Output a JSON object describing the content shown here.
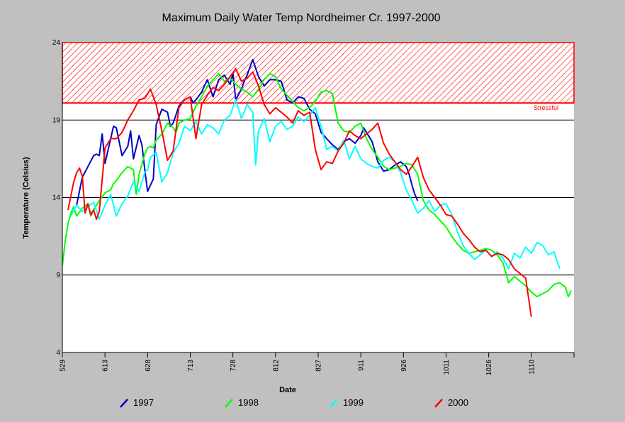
{
  "chart_data": {
    "type": "line",
    "title": "Maximum Daily Water Temp Nordheimer Cr. 1997-2000",
    "xlabel": "Date",
    "ylabel": "Temperature (Celsius)",
    "x_start_label": "529",
    "x_ticks": [
      {
        "label": "529",
        "day": 0
      },
      {
        "label": "613",
        "day": 15
      },
      {
        "label": "628",
        "day": 30
      },
      {
        "label": "713",
        "day": 45
      },
      {
        "label": "728",
        "day": 60
      },
      {
        "label": "812",
        "day": 75
      },
      {
        "label": "827",
        "day": 90
      },
      {
        "label": "911",
        "day": 105
      },
      {
        "label": "926",
        "day": 120
      },
      {
        "label": "1011",
        "day": 135
      },
      {
        "label": "1026",
        "day": 150
      },
      {
        "label": "1110",
        "day": 165
      }
    ],
    "xlim": [
      0,
      180
    ],
    "ylim": [
      4,
      24
    ],
    "y_ticks": [
      4,
      9,
      14,
      19,
      24
    ],
    "grid": "horizontal",
    "threshold": {
      "label": "Stressful",
      "from": 20.1,
      "to": 24,
      "color": "#ff0000"
    },
    "legend_position": "bottom",
    "series": [
      {
        "name": "1997",
        "color": "#0000c8",
        "x": [
          5,
          7,
          9,
          11,
          12,
          13,
          14,
          15,
          17,
          18,
          19,
          21,
          23,
          24,
          25,
          27,
          28,
          29,
          30,
          31,
          32,
          33,
          35,
          37,
          38,
          39,
          41,
          43,
          45,
          46,
          47,
          49,
          51,
          53,
          55,
          57,
          59,
          60,
          61,
          63,
          64,
          65,
          67,
          69,
          71,
          73,
          75,
          77,
          79,
          81,
          83,
          85,
          87,
          89,
          91,
          93,
          95,
          97,
          99,
          101,
          103,
          105,
          106,
          107,
          109,
          111,
          113,
          115,
          117,
          119,
          121,
          122,
          123,
          124,
          125
        ],
        "y": [
          13.5,
          15.3,
          16.0,
          16.7,
          16.8,
          16.7,
          18.1,
          16.2,
          17.8,
          18.6,
          18.5,
          16.7,
          17.3,
          18.3,
          16.5,
          18.0,
          17.4,
          15.8,
          14.4,
          14.8,
          15.2,
          18.7,
          19.7,
          19.5,
          18.6,
          18.8,
          19.9,
          20.3,
          20.5,
          20.1,
          20.3,
          20.8,
          21.6,
          20.5,
          21.6,
          21.9,
          21.3,
          22.0,
          20.3,
          21.0,
          21.5,
          21.9,
          22.9,
          21.8,
          21.2,
          21.6,
          21.6,
          21.5,
          20.3,
          20.1,
          20.5,
          20.4,
          19.7,
          19.4,
          18.2,
          17.8,
          17.4,
          17.1,
          17.6,
          17.8,
          17.5,
          18.0,
          18.5,
          18.2,
          17.6,
          16.3,
          15.7,
          15.8,
          16.1,
          16.3,
          16.0,
          15.5,
          14.8,
          14.2,
          13.8
        ]
      },
      {
        "name": "1998",
        "color": "#00ff00",
        "x": [
          0,
          1,
          2,
          3,
          4,
          5,
          7,
          9,
          10,
          11,
          13,
          15,
          17,
          18,
          19,
          21,
          23,
          25,
          26,
          27,
          29,
          30,
          31,
          32,
          33,
          35,
          37,
          39,
          40,
          41,
          43,
          45,
          47,
          49,
          51,
          53,
          55,
          57,
          59,
          61,
          63,
          65,
          67,
          69,
          71,
          73,
          75,
          77,
          79,
          81,
          83,
          85,
          87,
          89,
          91,
          93,
          95,
          97,
          99,
          101,
          103,
          105,
          107,
          109,
          111,
          113,
          115,
          117,
          119,
          121,
          123,
          125,
          127,
          129,
          131,
          133,
          135,
          137,
          139,
          141,
          143,
          145,
          147,
          149,
          151,
          153,
          155,
          157,
          159,
          161,
          163,
          165,
          167,
          169,
          171,
          173,
          175,
          177,
          178,
          179
        ],
        "y": [
          9.6,
          11.2,
          12.3,
          13.0,
          13.4,
          12.8,
          13.3,
          13.6,
          12.8,
          13.2,
          13.8,
          14.3,
          14.5,
          14.9,
          15.1,
          15.6,
          16.0,
          15.8,
          14.2,
          15.5,
          16.8,
          17.2,
          17.3,
          17.2,
          17.7,
          18.1,
          18.8,
          18.5,
          18.2,
          18.8,
          19.0,
          19.1,
          19.9,
          20.5,
          21.2,
          21.6,
          22.0,
          21.5,
          21.7,
          21.3,
          21.0,
          20.8,
          20.5,
          21.0,
          21.6,
          22.0,
          21.8,
          21.0,
          20.6,
          20.2,
          19.8,
          19.6,
          19.8,
          20.2,
          20.8,
          20.9,
          20.7,
          18.8,
          18.3,
          18.2,
          18.6,
          18.8,
          17.8,
          17.1,
          16.6,
          16.0,
          15.8,
          15.9,
          16.0,
          16.2,
          16.1,
          15.5,
          13.8,
          13.2,
          12.9,
          12.5,
          12.1,
          11.5,
          11.0,
          10.6,
          10.4,
          10.5,
          10.6,
          10.7,
          10.6,
          10.3,
          9.8,
          8.5,
          8.9,
          8.6,
          8.3,
          7.9,
          7.6,
          7.8,
          8.0,
          8.4,
          8.5,
          8.2,
          7.6,
          8.0
        ]
      },
      {
        "name": "1999",
        "color": "#00ffff",
        "x": [
          3,
          5,
          7,
          9,
          11,
          13,
          15,
          17,
          19,
          21,
          23,
          25,
          27,
          29,
          30,
          31,
          33,
          35,
          37,
          39,
          41,
          43,
          45,
          47,
          49,
          51,
          53,
          55,
          57,
          59,
          61,
          63,
          65,
          67,
          68,
          69,
          71,
          73,
          75,
          77,
          79,
          81,
          83,
          85,
          87,
          89,
          91,
          93,
          95,
          97,
          99,
          101,
          103,
          105,
          107,
          109,
          111,
          113,
          115,
          117,
          119,
          121,
          123,
          125,
          127,
          129,
          131,
          133,
          135,
          137,
          139,
          141,
          143,
          145,
          147,
          149,
          151,
          153,
          155,
          157,
          159,
          161,
          163,
          165,
          167,
          169,
          171,
          173,
          175
        ],
        "y": [
          12.8,
          13.5,
          13.1,
          13.4,
          13.7,
          12.6,
          13.5,
          14.2,
          12.8,
          13.6,
          14.1,
          15.0,
          14.4,
          15.6,
          15.8,
          16.6,
          16.9,
          15.0,
          15.6,
          16.9,
          17.5,
          18.6,
          18.3,
          18.9,
          18.1,
          18.7,
          18.5,
          18.1,
          19.0,
          19.3,
          20.3,
          19.1,
          20.0,
          19.5,
          16.1,
          18.3,
          19.1,
          17.6,
          18.6,
          18.9,
          18.4,
          18.6,
          19.2,
          18.9,
          19.3,
          19.8,
          18.6,
          17.1,
          17.3,
          17.0,
          17.7,
          16.5,
          17.3,
          16.5,
          16.2,
          16.0,
          15.9,
          16.4,
          16.6,
          16.3,
          15.6,
          14.5,
          13.8,
          13.0,
          13.3,
          13.8,
          13.1,
          13.5,
          13.6,
          12.9,
          11.8,
          10.9,
          10.4,
          10.0,
          10.3,
          10.6,
          10.2,
          10.5,
          10.1,
          9.4,
          10.4,
          10.1,
          10.8,
          10.4,
          11.1,
          10.9,
          10.3,
          10.5,
          9.4
        ]
      },
      {
        "name": "2000",
        "color": "#ff0000",
        "x": [
          2,
          3,
          4,
          5,
          6,
          7,
          8,
          9,
          10,
          11,
          12,
          13,
          15,
          17,
          19,
          21,
          23,
          25,
          27,
          29,
          31,
          33,
          35,
          37,
          39,
          41,
          43,
          45,
          47,
          49,
          51,
          53,
          55,
          57,
          59,
          61,
          63,
          65,
          67,
          69,
          71,
          73,
          75,
          77,
          79,
          81,
          83,
          85,
          87,
          89,
          91,
          93,
          95,
          97,
          99,
          101,
          103,
          105,
          107,
          109,
          111,
          113,
          115,
          117,
          119,
          121,
          123,
          125,
          127,
          129,
          131,
          133,
          135,
          137,
          139,
          141,
          143,
          145,
          147,
          149,
          151,
          153,
          155,
          157,
          159,
          161,
          163,
          165
        ],
        "y": [
          13.2,
          14.1,
          15.0,
          15.6,
          15.9,
          15.4,
          13.0,
          13.6,
          12.9,
          13.2,
          12.6,
          13.1,
          17.2,
          17.8,
          17.8,
          18.2,
          19.0,
          19.6,
          20.3,
          20.4,
          21.0,
          20.0,
          18.3,
          16.4,
          17.0,
          19.8,
          20.3,
          20.5,
          17.8,
          20.0,
          20.6,
          21.1,
          20.9,
          21.3,
          21.8,
          22.3,
          21.5,
          21.7,
          22.1,
          21.2,
          20.0,
          19.4,
          19.8,
          19.5,
          19.2,
          18.8,
          19.6,
          19.3,
          19.5,
          17.1,
          15.8,
          16.3,
          16.2,
          17.0,
          17.5,
          18.3,
          18.0,
          17.8,
          18.1,
          18.4,
          18.8,
          17.5,
          16.8,
          16.3,
          15.8,
          15.5,
          16.0,
          16.6,
          15.3,
          14.5,
          14.0,
          13.5,
          12.9,
          12.8,
          12.3,
          11.7,
          11.3,
          10.8,
          10.5,
          10.6,
          10.2,
          10.4,
          10.3,
          10.0,
          9.4,
          9.1,
          8.8,
          6.3
        ]
      }
    ]
  }
}
